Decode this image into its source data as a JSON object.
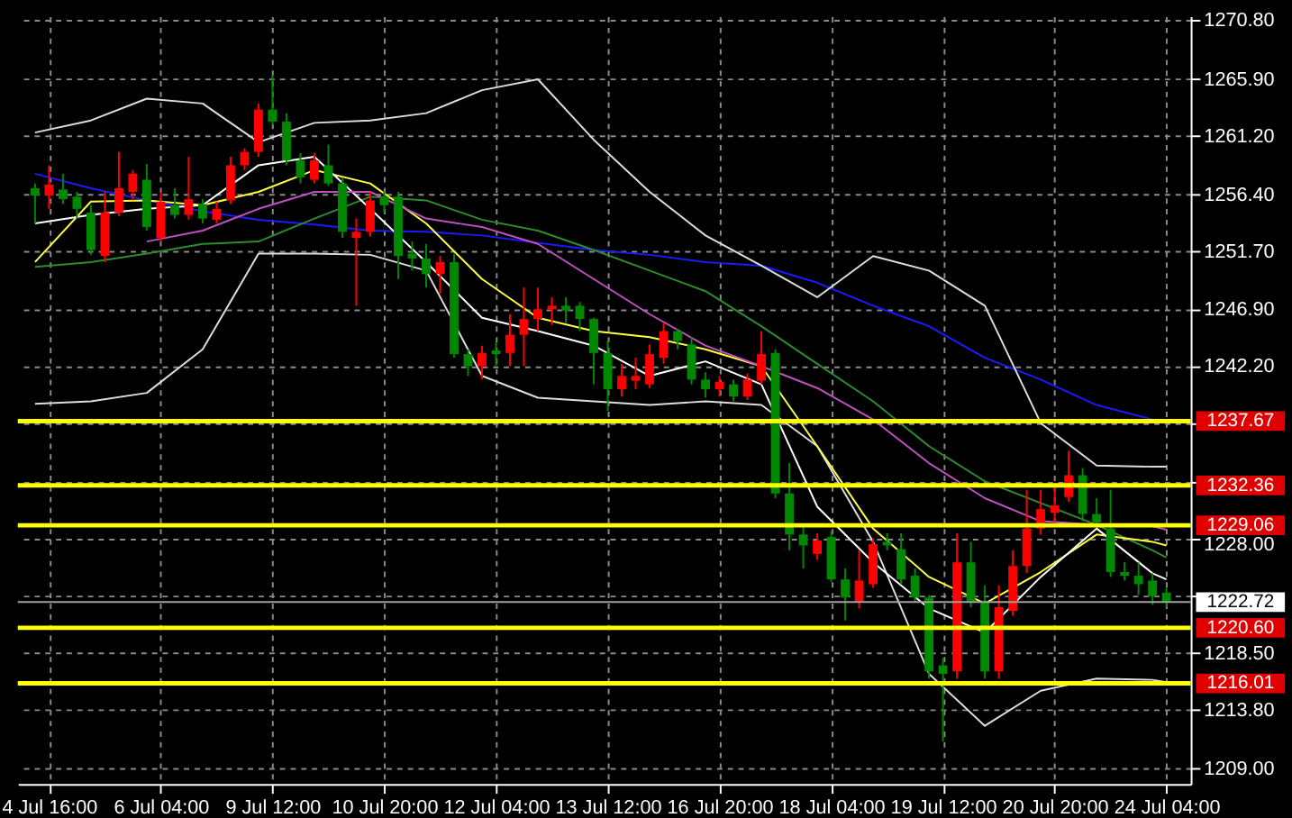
{
  "chart_data": {
    "type": "candlestick",
    "categories": [
      null,
      "4 Jul 16:00",
      null,
      null,
      null,
      null,
      null,
      null,
      null,
      "6 Jul 04:00",
      null,
      null,
      null,
      null,
      null,
      null,
      null,
      "9 Jul 12:00",
      null,
      null,
      null,
      null,
      null,
      null,
      null,
      "10 Jul 20:00",
      null,
      null,
      null,
      null,
      null,
      null,
      null,
      "12 Jul 04:00",
      null,
      null,
      null,
      null,
      null,
      null,
      null,
      "13 Jul 12:00",
      null,
      null,
      null,
      null,
      null,
      null,
      null,
      "16 Jul 20:00",
      null,
      null,
      null,
      null,
      null,
      null,
      null,
      "18 Jul 04:00",
      null,
      null,
      null,
      null,
      null,
      null,
      null,
      "19 Jul 12:00",
      null,
      null,
      null,
      null,
      null,
      null,
      null,
      "20 Jul 20:00",
      null,
      null,
      null,
      null,
      null,
      null,
      null,
      "24 Jul 04:00"
    ],
    "ohlc": [
      [
        1256.9,
        1257.3,
        1254.0,
        1256.3
      ],
      [
        1256.3,
        1258.8,
        1255.2,
        1257.2
      ],
      [
        1256.8,
        1258.1,
        1255.6,
        1256.0
      ],
      [
        1256.2,
        1256.6,
        1254.4,
        1255.2
      ],
      [
        1254.9,
        1255.5,
        1251.4,
        1251.8
      ],
      [
        1251.3,
        1256.6,
        1250.8,
        1254.9
      ],
      [
        1254.9,
        1259.9,
        1254.6,
        1256.9
      ],
      [
        1256.6,
        1258.4,
        1255.9,
        1258.1
      ],
      [
        1257.6,
        1258.9,
        1253.4,
        1253.7
      ],
      [
        1252.8,
        1256.6,
        1252.5,
        1255.8
      ],
      [
        1255.5,
        1256.9,
        1254.4,
        1254.7
      ],
      [
        1254.7,
        1259.5,
        1254.3,
        1256.0
      ],
      [
        1255.6,
        1256.0,
        1254.0,
        1254.4
      ],
      [
        1254.3,
        1255.8,
        1254.0,
        1255.2
      ],
      [
        1255.9,
        1259.5,
        1255.6,
        1258.8
      ],
      [
        1258.8,
        1260.2,
        1258.4,
        1259.9
      ],
      [
        1259.9,
        1263.9,
        1259.5,
        1263.4
      ],
      [
        1263.4,
        1266.3,
        1262.1,
        1262.4
      ],
      [
        1262.4,
        1263.1,
        1258.8,
        1259.2
      ],
      [
        1259.2,
        1259.8,
        1257.3,
        1257.8
      ],
      [
        1257.6,
        1259.8,
        1257.3,
        1259.2
      ],
      [
        1258.8,
        1260.5,
        1257.1,
        1257.3
      ],
      [
        1257.3,
        1257.8,
        1252.8,
        1253.3
      ],
      [
        1252.8,
        1254.4,
        1247.2,
        1253.3
      ],
      [
        1253.3,
        1256.6,
        1252.9,
        1255.9
      ],
      [
        1256.2,
        1256.6,
        1254.9,
        1255.5
      ],
      [
        1256.2,
        1256.6,
        1249.4,
        1251.3
      ],
      [
        1251.5,
        1252.5,
        1250.1,
        1251.1
      ],
      [
        1251.1,
        1252.3,
        1248.7,
        1249.8
      ],
      [
        1249.8,
        1251.3,
        1248.2,
        1250.8
      ],
      [
        1250.8,
        1251.5,
        1242.9,
        1243.2
      ],
      [
        1243.2,
        1243.6,
        1241.4,
        1242.2
      ],
      [
        1242.2,
        1243.9,
        1241.1,
        1243.3
      ],
      [
        1243.5,
        1244.2,
        1242.2,
        1243.2
      ],
      [
        1243.3,
        1246.5,
        1242.2,
        1244.8
      ],
      [
        1244.8,
        1248.7,
        1242.2,
        1246.1
      ],
      [
        1246.1,
        1248.7,
        1245.1,
        1246.9
      ],
      [
        1246.9,
        1247.9,
        1245.6,
        1247.2
      ],
      [
        1247.2,
        1247.9,
        1245.8,
        1246.8
      ],
      [
        1247.2,
        1247.5,
        1245.1,
        1246.1
      ],
      [
        1246.1,
        1246.2,
        1240.7,
        1243.3
      ],
      [
        1243.3,
        1244.3,
        1238.5,
        1240.3
      ],
      [
        1240.3,
        1242.4,
        1239.7,
        1241.4
      ],
      [
        1241.0,
        1242.9,
        1240.3,
        1241.4
      ],
      [
        1240.7,
        1244.0,
        1240.4,
        1243.2
      ],
      [
        1242.9,
        1245.8,
        1242.4,
        1245.1
      ],
      [
        1245.1,
        1245.3,
        1243.6,
        1244.3
      ],
      [
        1244.0,
        1244.6,
        1240.7,
        1241.1
      ],
      [
        1241.1,
        1241.7,
        1239.6,
        1240.3
      ],
      [
        1240.3,
        1241.4,
        1239.7,
        1240.9
      ],
      [
        1240.7,
        1241.1,
        1239.3,
        1239.7
      ],
      [
        1239.7,
        1241.6,
        1239.4,
        1241.1
      ],
      [
        1241.0,
        1245.1,
        1240.7,
        1243.2
      ],
      [
        1243.3,
        1243.6,
        1231.3,
        1231.7
      ],
      [
        1231.7,
        1234.2,
        1227.0,
        1228.3
      ],
      [
        1228.3,
        1229.1,
        1225.5,
        1227.4
      ],
      [
        1226.7,
        1228.4,
        1226.2,
        1227.8
      ],
      [
        1228.1,
        1228.6,
        1224.4,
        1224.6
      ],
      [
        1224.6,
        1225.5,
        1221.2,
        1223.1
      ],
      [
        1222.7,
        1227.0,
        1222.2,
        1224.5
      ],
      [
        1224.2,
        1228.0,
        1223.9,
        1227.5
      ],
      [
        1227.7,
        1228.4,
        1227.0,
        1227.4
      ],
      [
        1227.1,
        1228.4,
        1224.2,
        1224.6
      ],
      [
        1224.9,
        1225.5,
        1222.7,
        1223.1
      ],
      [
        1223.1,
        1223.3,
        1216.4,
        1217.0
      ],
      [
        1217.5,
        1218.1,
        1211.2,
        1216.8
      ],
      [
        1217.0,
        1228.4,
        1216.4,
        1226.0
      ],
      [
        1226.0,
        1227.7,
        1222.3,
        1222.7
      ],
      [
        1222.7,
        1224.1,
        1216.4,
        1217.0
      ],
      [
        1217.0,
        1224.1,
        1216.4,
        1222.3
      ],
      [
        1222.0,
        1227.0,
        1221.6,
        1225.7
      ],
      [
        1225.7,
        1232.0,
        1225.1,
        1228.8
      ],
      [
        1228.8,
        1232.0,
        1228.3,
        1230.4
      ],
      [
        1230.1,
        1232.6,
        1229.1,
        1230.7
      ],
      [
        1231.4,
        1235.2,
        1231.0,
        1233.2
      ],
      [
        1233.2,
        1233.8,
        1229.4,
        1230.0
      ],
      [
        1230.0,
        1231.3,
        1229.0,
        1229.3
      ],
      [
        1228.8,
        1232.0,
        1224.8,
        1225.2
      ],
      [
        1225.2,
        1226.0,
        1224.5,
        1224.9
      ],
      [
        1224.9,
        1226.0,
        1223.3,
        1224.2
      ],
      [
        1224.5,
        1225.1,
        1222.5,
        1223.2
      ],
      [
        1223.5,
        1223.9,
        1222.3,
        1222.72
      ]
    ],
    "colors": [
      "#008800",
      "#ff0000",
      "#008800",
      "#008800",
      "#008800",
      "#ff0000",
      "#ff0000",
      "#ff0000",
      "#008800",
      "#ff0000",
      "#008800",
      "#ff0000",
      "#008800",
      "#ff0000",
      "#ff0000",
      "#ff0000",
      "#ff0000",
      "#008800",
      "#008800",
      "#008800",
      "#ff0000",
      "#008800",
      "#008800",
      "#ff0000",
      "#ff0000",
      "#008800",
      "#008800",
      "#008800",
      "#008800",
      "#ff0000",
      "#008800",
      "#008800",
      "#ff0000",
      "#008800",
      "#ff0000",
      "#ff0000",
      "#ff0000",
      "#ff0000",
      "#008800",
      "#008800",
      "#008800",
      "#008800",
      "#ff0000",
      "#ff0000",
      "#ff0000",
      "#ff0000",
      "#008800",
      "#008800",
      "#008800",
      "#ff0000",
      "#008800",
      "#ff0000",
      "#ff0000",
      "#008800",
      "#008800",
      "#008800",
      "#ff0000",
      "#008800",
      "#008800",
      "#ff0000",
      "#ff0000",
      "#008800",
      "#008800",
      "#008800",
      "#008800",
      "#008800",
      "#ff0000",
      "#008800",
      "#008800",
      "#ff0000",
      "#ff0000",
      "#ff0000",
      "#ff0000",
      "#ff0000",
      "#ff0000",
      "#008800",
      "#008800",
      "#008800",
      "#008800",
      "#008800",
      "#008800",
      "#008800"
    ],
    "series": [
      {
        "type": "line",
        "color": "#1a1aff",
        "values": [
          1258.1,
          null,
          null,
          null,
          1256.9,
          null,
          null,
          null,
          1255.9,
          null,
          null,
          null,
          1255.0,
          null,
          null,
          null,
          1254.3,
          null,
          null,
          null,
          1253.9,
          null,
          null,
          null,
          1253.4,
          null,
          null,
          null,
          1253.3,
          null,
          null,
          null,
          1253.0,
          null,
          null,
          null,
          1252.4,
          null,
          null,
          null,
          1251.8,
          null,
          null,
          null,
          1251.4,
          null,
          null,
          null,
          1250.8,
          null,
          null,
          null,
          1250.5,
          null,
          null,
          null,
          1249.1,
          null,
          null,
          null,
          1247.2,
          null,
          null,
          null,
          1245.5,
          null,
          null,
          null,
          1242.9,
          null,
          null,
          null,
          1241.1,
          null,
          null,
          null,
          1239.0,
          null,
          null,
          null,
          1237.8,
          1237.5
        ]
      },
      {
        "type": "line",
        "color": "#2e8b2e",
        "values": [
          1250.4,
          null,
          null,
          null,
          1250.8,
          null,
          null,
          null,
          1251.5,
          null,
          null,
          null,
          1252.3,
          null,
          null,
          null,
          1252.5,
          null,
          null,
          null,
          1254.4,
          null,
          null,
          null,
          1256.2,
          null,
          null,
          null,
          1255.9,
          null,
          null,
          null,
          1254.3,
          null,
          null,
          null,
          1253.4,
          null,
          null,
          null,
          1251.8,
          null,
          null,
          null,
          1250.1,
          null,
          null,
          null,
          1248.4,
          null,
          null,
          null,
          1245.5,
          null,
          null,
          null,
          1242.4,
          null,
          null,
          null,
          1239.3,
          null,
          null,
          null,
          1235.6,
          null,
          null,
          null,
          1232.7,
          null,
          null,
          null,
          1230.9,
          null,
          null,
          null,
          1229.1,
          null,
          null,
          null,
          1227.0,
          1226.4
        ]
      },
      {
        "type": "line",
        "color": "#dddddd",
        "values": [
          1261.5,
          null,
          null,
          null,
          1262.5,
          null,
          null,
          null,
          1264.3,
          null,
          null,
          null,
          1263.9,
          null,
          null,
          null,
          1260.7,
          null,
          null,
          null,
          1262.3,
          null,
          null,
          null,
          1262.5,
          null,
          null,
          null,
          1263.1,
          null,
          null,
          null,
          1265.0,
          null,
          null,
          null,
          1265.9,
          null,
          null,
          null,
          1260.9,
          null,
          null,
          null,
          1256.6,
          null,
          null,
          null,
          1253.0,
          null,
          null,
          null,
          1250.5,
          null,
          null,
          null,
          1247.9,
          null,
          null,
          null,
          1251.3,
          null,
          null,
          null,
          1250.1,
          null,
          null,
          null,
          1247.2,
          null,
          null,
          null,
          1237.5,
          null,
          null,
          null,
          1234.0,
          null,
          null,
          null,
          1233.9,
          1233.9
        ]
      },
      {
        "type": "line",
        "color": "#dddddd",
        "values": [
          1239.1,
          null,
          null,
          null,
          1239.3,
          null,
          null,
          null,
          1240.0,
          null,
          null,
          null,
          1243.6,
          null,
          null,
          null,
          1251.5,
          null,
          null,
          null,
          1251.5,
          null,
          null,
          null,
          1251.4,
          null,
          null,
          null,
          1250.1,
          null,
          null,
          null,
          1241.4,
          null,
          null,
          null,
          1239.6,
          null,
          null,
          null,
          1239.3,
          null,
          null,
          null,
          1239.0,
          null,
          null,
          null,
          1239.3,
          null,
          null,
          null,
          1239.0,
          null,
          null,
          null,
          1235.6,
          null,
          null,
          null,
          1227.7,
          null,
          null,
          null,
          1216.8,
          null,
          null,
          null,
          1212.5,
          null,
          null,
          null,
          1215.4,
          null,
          null,
          null,
          1216.4,
          null,
          null,
          null,
          1216.3,
          1216.1
        ]
      },
      {
        "type": "line",
        "color": "#ffff40",
        "values": [
          1250.8,
          null,
          null,
          null,
          1255.8,
          null,
          null,
          null,
          1255.9,
          null,
          null,
          null,
          1255.5,
          null,
          null,
          null,
          1256.6,
          null,
          null,
          null,
          1258.4,
          null,
          null,
          null,
          1257.3,
          null,
          null,
          null,
          1254.0,
          null,
          null,
          null,
          1249.4,
          null,
          null,
          null,
          1246.2,
          null,
          null,
          null,
          1245.1,
          null,
          null,
          null,
          1244.6,
          null,
          null,
          null,
          1243.6,
          null,
          null,
          null,
          1242.2,
          null,
          null,
          null,
          1235.6,
          null,
          null,
          null,
          1228.8,
          null,
          null,
          null,
          1224.8,
          null,
          null,
          null,
          1222.6,
          null,
          null,
          null,
          1225.2,
          null,
          null,
          null,
          1228.3,
          null,
          null,
          null,
          1227.7,
          1227.4
        ]
      },
      {
        "type": "line",
        "color": "#ffffff",
        "values": [
          1254.0,
          null,
          null,
          null,
          1254.7,
          null,
          null,
          null,
          1255.2,
          null,
          null,
          null,
          1255.5,
          null,
          null,
          null,
          1258.8,
          null,
          null,
          null,
          1259.5,
          null,
          null,
          null,
          1255.2,
          null,
          null,
          null,
          1250.8,
          null,
          null,
          null,
          1246.2,
          null,
          null,
          null,
          1245.1,
          null,
          null,
          null,
          1243.9,
          null,
          null,
          null,
          1241.4,
          null,
          null,
          null,
          1242.6,
          null,
          null,
          null,
          1240.7,
          null,
          null,
          null,
          1230.6,
          null,
          null,
          null,
          1226.0,
          null,
          null,
          null,
          1222.2,
          null,
          null,
          null,
          1220.2,
          null,
          null,
          null,
          1224.8,
          null,
          null,
          null,
          1228.8,
          null,
          null,
          null,
          1225.1,
          1224.6
        ]
      },
      {
        "type": "line",
        "color": "#c050c0",
        "values": [
          null,
          null,
          null,
          null,
          null,
          null,
          null,
          null,
          1252.5,
          null,
          null,
          null,
          1253.4,
          null,
          null,
          null,
          1255.2,
          null,
          null,
          null,
          1256.6,
          null,
          null,
          null,
          1256.6,
          null,
          null,
          null,
          1254.4,
          null,
          null,
          null,
          1253.7,
          null,
          null,
          null,
          1252.3,
          null,
          null,
          null,
          1249.4,
          null,
          null,
          null,
          1246.5,
          null,
          null,
          null,
          1243.9,
          null,
          null,
          null,
          1242.2,
          null,
          null,
          null,
          1240.4,
          null,
          null,
          null,
          1237.8,
          null,
          null,
          null,
          1234.2,
          null,
          null,
          null,
          1231.3,
          null,
          null,
          null,
          1229.4,
          null,
          null,
          null,
          1229.1,
          null,
          null,
          null,
          1229.0,
          1228.7
        ]
      }
    ],
    "ylim": [
      1207.7,
      1271.1
    ],
    "yticks": [
      {
        "value": 1270.8,
        "label": "1270.80"
      },
      {
        "value": 1265.9,
        "label": "1265.90"
      },
      {
        "value": 1261.2,
        "label": "1261.20"
      },
      {
        "value": 1256.4,
        "label": "1256.40"
      },
      {
        "value": 1251.7,
        "label": "1251.70"
      },
      {
        "value": 1246.9,
        "label": "1246.90"
      },
      {
        "value": 1242.2,
        "label": "1242.20"
      },
      {
        "value": 1237.5,
        "label": null
      },
      {
        "value": 1232.7,
        "label": null
      },
      {
        "value": 1228.0,
        "label": "1228.00"
      },
      {
        "value": 1223.3,
        "label": null
      },
      {
        "value": 1218.5,
        "label": "1218.50"
      },
      {
        "value": 1213.8,
        "label": "1213.80"
      },
      {
        "value": 1209.0,
        "label": "1209.00"
      }
    ],
    "ref_lines": [
      {
        "axis": "y",
        "value": 1237.67,
        "label": "1237.67",
        "color": "#ffff00"
      },
      {
        "axis": "y",
        "value": 1232.36,
        "label": "1232.36",
        "color": "#ffff00"
      },
      {
        "axis": "y",
        "value": 1229.06,
        "label": "1229.06",
        "color": "#ffff00"
      },
      {
        "axis": "y",
        "value": 1220.6,
        "label": "1220.60",
        "color": "#ffff00"
      },
      {
        "axis": "y",
        "value": 1216.01,
        "label": "1216.01",
        "color": "#ffff00"
      },
      {
        "axis": "y",
        "value": 1222.72,
        "label": "1222.72",
        "color": "#a0a0a0"
      }
    ],
    "grid": true
  }
}
